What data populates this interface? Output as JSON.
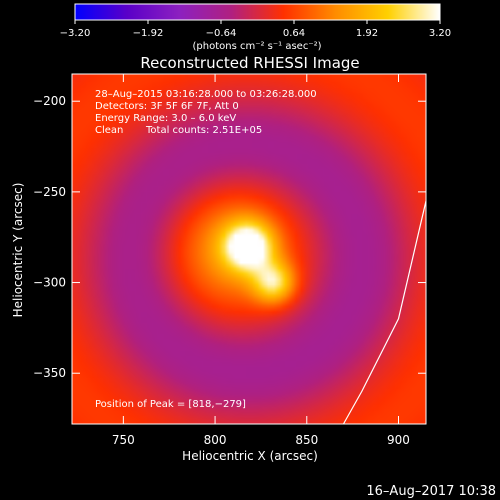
{
  "chart_data": {
    "type": "heatmap",
    "title": "Reconstructed RHESSI Image",
    "xlabel": "Heliocentric X (arcsec)",
    "ylabel": "Heliocentric Y (arcsec)",
    "xlim": [
      722,
      915
    ],
    "ylim": [
      -378,
      -185
    ],
    "x_ticks": [
      750,
      800,
      850,
      900
    ],
    "y_ticks": [
      -200,
      -250,
      -300,
      -350
    ],
    "x_tick_labels": [
      "750",
      "800",
      "850",
      "900"
    ],
    "y_tick_labels": [
      "−200",
      "−250",
      "−300",
      "−350"
    ],
    "colorbar": {
      "range": [
        -3.2,
        3.2
      ],
      "tick_labels": [
        "−3.20",
        "−1.92",
        "−0.64",
        "0.64",
        "1.92",
        "3.20"
      ],
      "units_label": "(photons cm⁻² s⁻¹ asec⁻²)",
      "colormap": [
        "#0000ff",
        "#5a00c8",
        "#8c20c0",
        "#b02080",
        "#ff3000",
        "#ff8c00",
        "#ffd000",
        "#ffffff"
      ]
    },
    "annotations": [
      "28–Aug–2015 03:16:28.000 to 03:26:28.000",
      "Detectors: 3F 5F 6F 7F, Att 0",
      "Energy Range: 3.0 – 6.0 keV",
      "Clean",
      "Total counts: 2.51E+05"
    ],
    "peak_label": "Position of Peak = [818,−279]",
    "peak": [
      818,
      -279
    ],
    "source_components": [
      {
        "x": 818,
        "y": -280,
        "sigma": 9,
        "amp": 3.0
      },
      {
        "x": 832,
        "y": -300,
        "sigma": 8,
        "amp": 2.2
      },
      {
        "x": 810,
        "y": -282,
        "sigma": 24,
        "amp": 1.6
      }
    ],
    "limb_line": {
      "x": [
        870,
        880,
        900,
        915
      ],
      "y": [
        -378,
        -360,
        -320,
        -255
      ]
    },
    "date_stamp": "16–Aug–2017 10:38"
  }
}
